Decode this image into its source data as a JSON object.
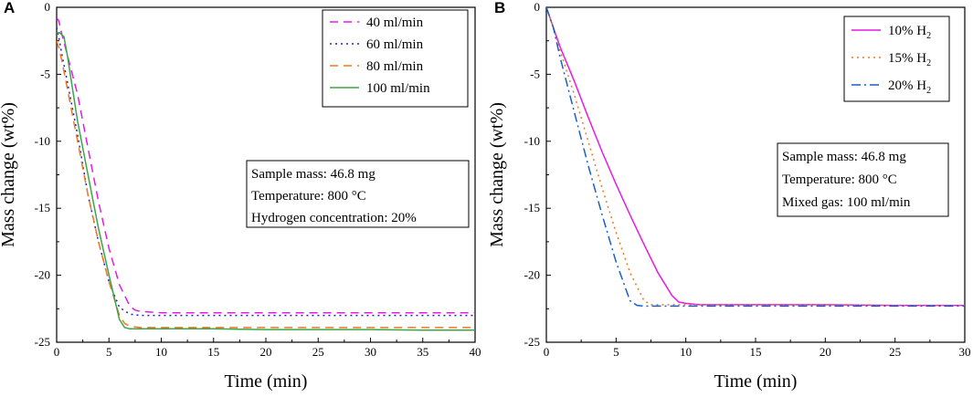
{
  "chart_data": [
    {
      "panel": "A",
      "type": "line",
      "xlabel": "Time (min)",
      "ylabel": "Mass change (wt%)",
      "xlim": [
        0,
        40
      ],
      "ylim": [
        -25,
        0
      ],
      "xticks": [
        0,
        5,
        10,
        15,
        20,
        25,
        30,
        35,
        40
      ],
      "yticks": [
        0,
        -5,
        -10,
        -15,
        -20,
        -25
      ],
      "legend_position": "top-right",
      "series": [
        {
          "name": "40 ml/min",
          "color": "#e61ae6",
          "style": "dashed",
          "x": [
            0,
            0.2,
            0.5,
            1,
            2,
            3,
            4,
            5,
            6,
            7,
            7.5,
            8,
            9,
            10,
            15,
            20,
            25,
            30,
            35,
            40
          ],
          "y": [
            -0.8,
            -1.0,
            -2.0,
            -3.5,
            -6.5,
            -10.5,
            -14.5,
            -18.0,
            -20.7,
            -22.3,
            -22.6,
            -22.7,
            -22.75,
            -22.8,
            -22.8,
            -22.8,
            -22.8,
            -22.8,
            -22.8,
            -22.8
          ]
        },
        {
          "name": "60 ml/min",
          "color": "#2020d0",
          "style": "dotted",
          "x": [
            0,
            0.2,
            0.5,
            1,
            2,
            3,
            4,
            5,
            6,
            7,
            8,
            10,
            15,
            20,
            25,
            30,
            35,
            40
          ],
          "y": [
            -1.5,
            -2.2,
            -3.5,
            -5.5,
            -9.5,
            -14.0,
            -17.5,
            -20.5,
            -22.4,
            -22.9,
            -23.0,
            -23.0,
            -23.0,
            -23.0,
            -23.0,
            -23.0,
            -23.0,
            -23.0
          ]
        },
        {
          "name": "80 ml/min",
          "color": "#f07820",
          "style": "dashed",
          "x": [
            0,
            0.2,
            0.5,
            1,
            2,
            3,
            4,
            5,
            6,
            6.5,
            7,
            8,
            10,
            15,
            20,
            25,
            30,
            35,
            40
          ],
          "y": [
            -2.5,
            -3.0,
            -4.0,
            -6.0,
            -10.0,
            -14.0,
            -17.5,
            -20.5,
            -23.0,
            -23.6,
            -23.8,
            -23.9,
            -23.9,
            -23.9,
            -23.9,
            -23.9,
            -23.9,
            -23.9,
            -23.9
          ]
        },
        {
          "name": "100 ml/min",
          "color": "#3aa64a",
          "style": "solid",
          "x": [
            0,
            0.3,
            0.7,
            1,
            1.5,
            2,
            3,
            4,
            5,
            6,
            6.5,
            7,
            8,
            10,
            15,
            20,
            25,
            30,
            35,
            40
          ],
          "y": [
            -1.9,
            -1.9,
            -2.2,
            -3.5,
            -6.0,
            -8.5,
            -12.5,
            -16.5,
            -20.0,
            -23.3,
            -23.9,
            -24.0,
            -24.0,
            -24.0,
            -24.0,
            -24.05,
            -24.05,
            -24.05,
            -24.1,
            -24.1
          ]
        }
      ],
      "annotation": [
        "Sample mass: 46.8 mg",
        "Temperature: 800 °C",
        "Hydrogen concentration: 20%"
      ]
    },
    {
      "panel": "B",
      "type": "line",
      "xlabel": "Time (min)",
      "ylabel": "Mass change (wt%)",
      "xlim": [
        0,
        30
      ],
      "ylim": [
        -25,
        0
      ],
      "xticks": [
        0,
        5,
        10,
        15,
        20,
        25,
        30
      ],
      "yticks": [
        0,
        -5,
        -10,
        -15,
        -20,
        -25
      ],
      "legend_position": "top-right",
      "series": [
        {
          "name_main": "10% H",
          "name_sub": "2",
          "color": "#e61ae6",
          "style": "solid",
          "x": [
            0,
            0.5,
            1,
            2,
            3,
            4,
            5,
            6,
            7,
            8,
            9,
            9.5,
            10,
            11,
            12,
            15,
            20,
            25,
            30
          ],
          "y": [
            0,
            -1.5,
            -3.0,
            -5.5,
            -8.2,
            -10.8,
            -13.2,
            -15.5,
            -17.7,
            -19.8,
            -21.5,
            -22.0,
            -22.1,
            -22.2,
            -22.2,
            -22.2,
            -22.2,
            -22.25,
            -22.25
          ]
        },
        {
          "name_main": "15% H",
          "name_sub": "2",
          "color": "#f07820",
          "style": "dotted",
          "x": [
            0,
            0.5,
            1,
            2,
            3,
            4,
            5,
            6,
            7,
            7.5,
            8,
            9,
            10,
            15,
            20,
            25,
            30
          ],
          "y": [
            0,
            -1.5,
            -3.3,
            -6.5,
            -10.0,
            -13.5,
            -16.8,
            -19.8,
            -21.9,
            -22.2,
            -22.2,
            -22.2,
            -22.2,
            -22.2,
            -22.2,
            -22.25,
            -22.25
          ]
        },
        {
          "name_main": "20% H",
          "name_sub": "2",
          "color": "#1a5fc8",
          "style": "dashdot",
          "x": [
            0,
            0.5,
            1,
            2,
            3,
            4,
            5,
            6,
            6.5,
            7,
            8,
            10,
            15,
            20,
            25,
            30
          ],
          "y": [
            0,
            -1.5,
            -3.8,
            -7.8,
            -11.8,
            -15.5,
            -19.0,
            -21.9,
            -22.25,
            -22.3,
            -22.3,
            -22.3,
            -22.3,
            -22.3,
            -22.3,
            -22.3
          ]
        }
      ],
      "annotation": [
        "Sample mass: 46.8 mg",
        "Temperature: 800 °C",
        "Mixed gas: 100 ml/min"
      ]
    }
  ]
}
